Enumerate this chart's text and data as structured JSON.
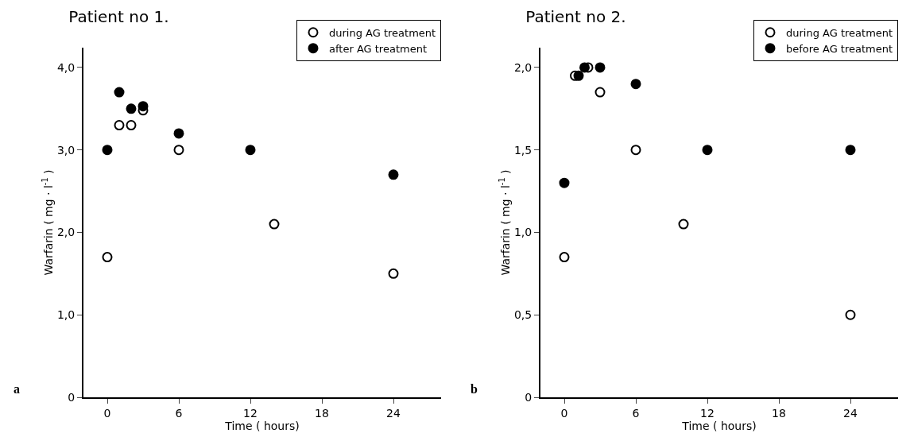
{
  "chart_data": [
    {
      "type": "scatter",
      "title": "Patient no 1.",
      "xlabel": "Time ( hours)",
      "ylabel": "Warfarin ( mg · l$^{-1}$ )",
      "annotations": [
        "a"
      ],
      "xlim": [
        -2,
        28
      ],
      "xticks": [
        0,
        6,
        12,
        18,
        24
      ],
      "ylim": [
        0,
        4.24
      ],
      "yticks": [
        {
          "value": 0,
          "label": "0"
        },
        {
          "value": 1,
          "label": "1,0"
        },
        {
          "value": 2,
          "label": "2,0"
        },
        {
          "value": 3,
          "label": "3,0"
        },
        {
          "value": 4,
          "label": "4,0"
        }
      ],
      "grid": false,
      "legend": "top right",
      "series": [
        {
          "name": "during AG treatment",
          "color": "#000000",
          "marker": "circle-open",
          "x": [
            0,
            1,
            2,
            3,
            6,
            14,
            24
          ],
          "values": [
            1.7,
            3.3,
            3.3,
            3.48,
            3.0,
            2.1,
            1.5
          ]
        },
        {
          "name": "after AG treatment",
          "color": "#000000",
          "marker": "circle",
          "x": [
            0,
            1,
            2,
            3,
            6,
            12,
            24
          ],
          "values": [
            3.0,
            3.7,
            3.5,
            3.53,
            3.2,
            3.0,
            2.7
          ]
        }
      ]
    },
    {
      "type": "scatter",
      "title": "Patient no 2.",
      "xlabel": "Time ( hours)",
      "ylabel": "Warfarin ( mg · l$^{-1}$ )",
      "annotations": [
        "b"
      ],
      "xlim": [
        -2,
        28
      ],
      "xticks": [
        0,
        6,
        12,
        18,
        24
      ],
      "ylim": [
        0,
        2.12
      ],
      "yticks": [
        {
          "value": 0,
          "label": "0"
        },
        {
          "value": 0.5,
          "label": "0,5"
        },
        {
          "value": 1,
          "label": "1,0"
        },
        {
          "value": 1.5,
          "label": "1,5"
        },
        {
          "value": 2,
          "label": "2,0"
        }
      ],
      "grid": false,
      "legend": "top right",
      "series": [
        {
          "name": "during AG treatment",
          "color": "#000000",
          "marker": "circle-open",
          "x": [
            0,
            0.9,
            2,
            3,
            6,
            10,
            24
          ],
          "values": [
            0.85,
            1.95,
            2.0,
            1.85,
            1.5,
            1.05,
            0.5
          ]
        },
        {
          "name": "before AG treatment",
          "color": "#000000",
          "marker": "circle",
          "x": [
            0,
            1.2,
            1.7,
            3,
            6,
            12,
            24
          ],
          "values": [
            1.3,
            1.95,
            2.0,
            2.0,
            1.9,
            1.5,
            1.5
          ]
        }
      ]
    }
  ]
}
